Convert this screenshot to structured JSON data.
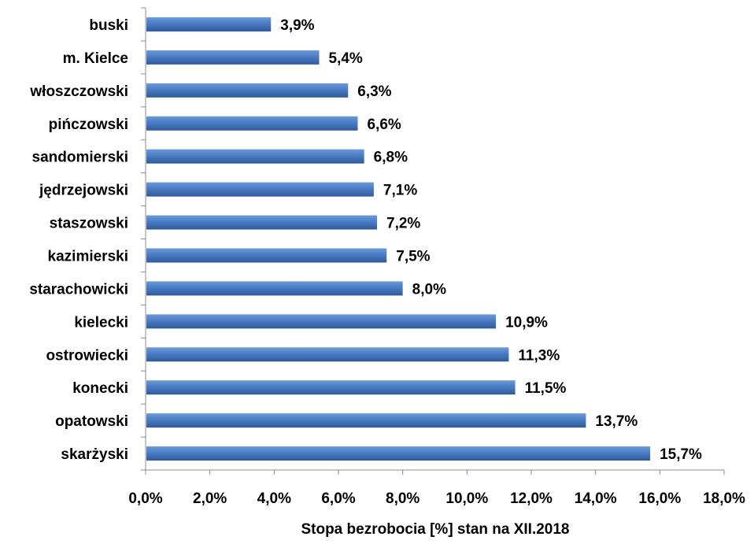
{
  "chart_data": {
    "type": "bar",
    "orientation": "horizontal",
    "categories": [
      "buski",
      "m. Kielce",
      "włoszczowski",
      "pińczowski",
      "sandomierski",
      "jędrzejowski",
      "staszowski",
      "kazimierski",
      "starachowicki",
      "kielecki",
      "ostrowiecki",
      "konecki",
      "opatowski",
      "skarżyski"
    ],
    "values": [
      3.9,
      5.4,
      6.3,
      6.6,
      6.8,
      7.1,
      7.2,
      7.5,
      8.0,
      10.9,
      11.3,
      11.5,
      13.7,
      15.7
    ],
    "data_labels": [
      "3,9%",
      "5,4%",
      "6,3%",
      "6,6%",
      "6,8%",
      "7,1%",
      "7,2%",
      "7,5%",
      "8,0%",
      "10,9%",
      "11,3%",
      "11,5%",
      "13,7%",
      "15,7%"
    ],
    "xlabel": "Stopa bezrobocia [%] stan na XII.2018",
    "ylabel": "",
    "title": "",
    "xlim": [
      0,
      18
    ],
    "x_ticks": [
      0,
      2,
      4,
      6,
      8,
      10,
      12,
      14,
      16,
      18
    ],
    "x_tick_labels": [
      "0,0%",
      "2,0%",
      "4,0%",
      "6,0%",
      "8,0%",
      "10,0%",
      "12,0%",
      "14,0%",
      "16,0%",
      "18,0%"
    ],
    "bar_color": "#4a7cc4",
    "bar_color_dark": "#2f5a99",
    "grid": false,
    "legend": "none"
  }
}
